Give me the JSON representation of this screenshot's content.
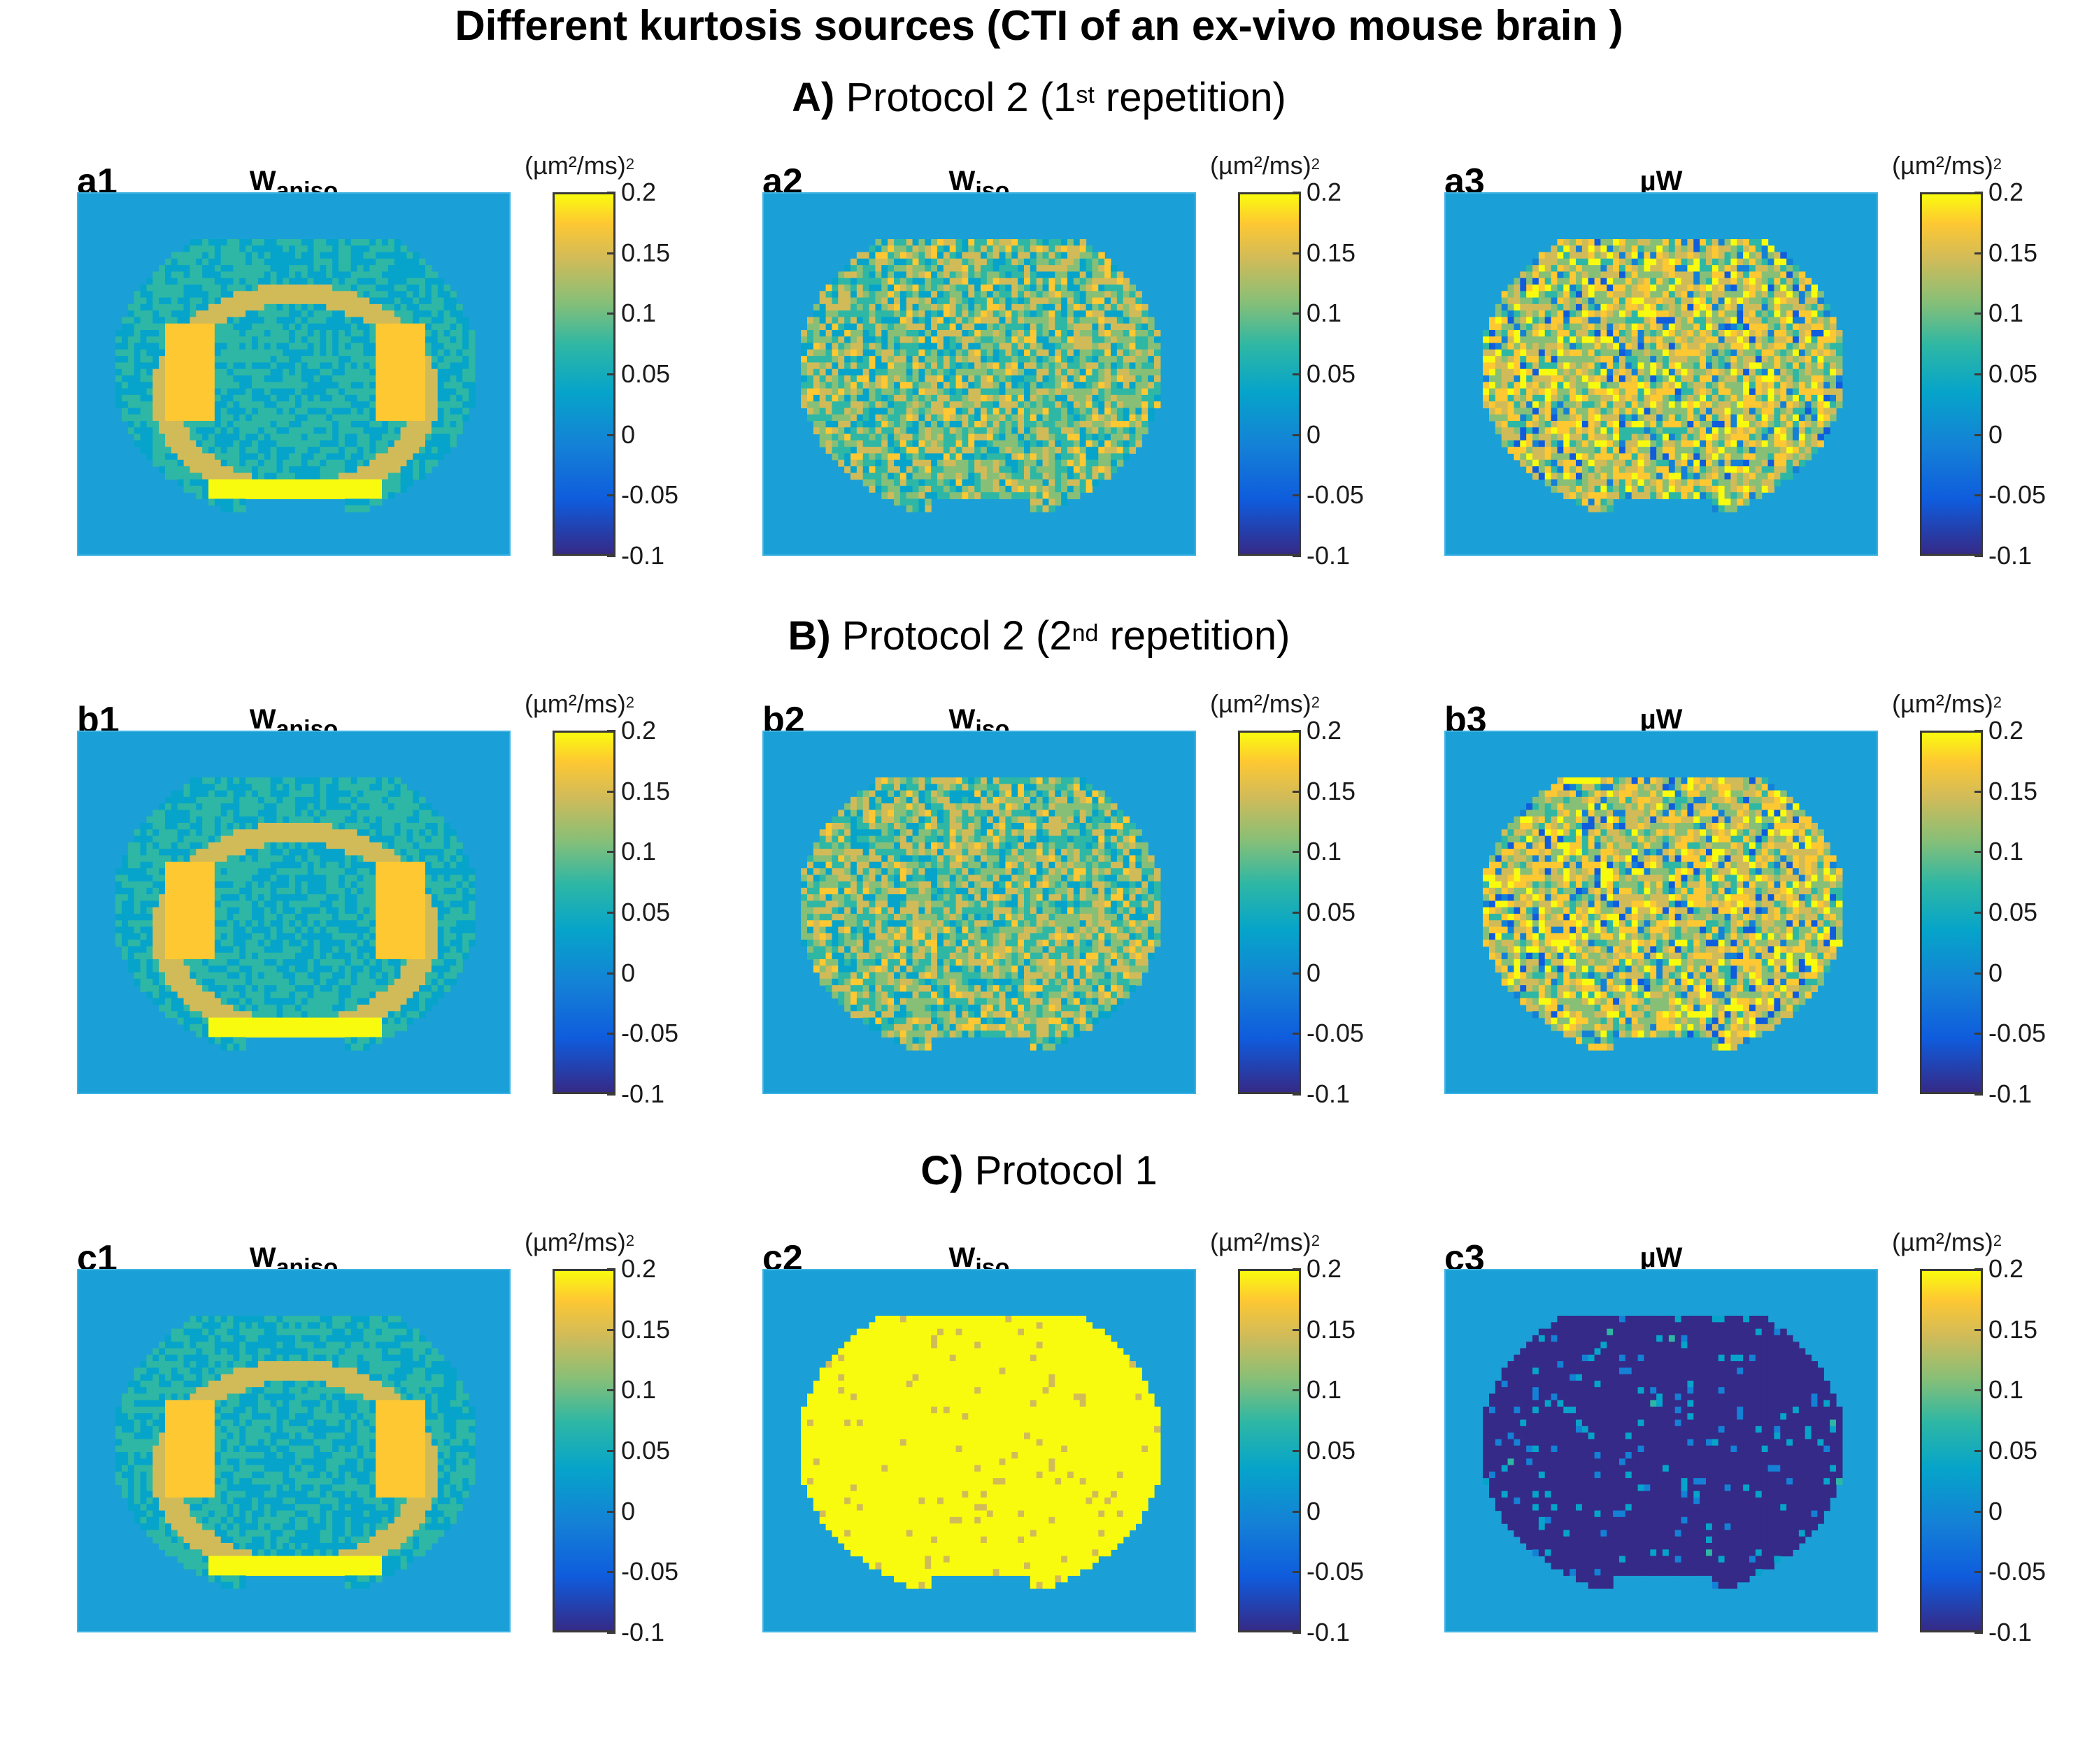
{
  "figure": {
    "title": "Different kurtosis sources (CTI of an ex-vivo mouse brain )",
    "colors": {
      "background_map": "#1aa0d6",
      "yellow": "#f9fb0e",
      "dark": "#352a87"
    },
    "rows": [
      {
        "letter": "A)",
        "text": " Protocol 2 (1",
        "sup": "st",
        "text2": " repetition)"
      },
      {
        "letter": "B)",
        "text": " Protocol 2 (2",
        "sup": "nd",
        "text2": " repetition)"
      },
      {
        "letter": "C)",
        "text": " Protocol 1",
        "sup": "",
        "text2": ""
      }
    ],
    "panels": [
      {
        "label": "a1",
        "title_main": "W",
        "title_sub": "aniso",
        "unit": "(µm²/ms)",
        "unit_sup": "2",
        "pattern": "aniso"
      },
      {
        "label": "a2",
        "title_main": "W",
        "title_sub": "iso",
        "unit": "(µm²/ms)",
        "unit_sup": "2",
        "pattern": "noise-mid"
      },
      {
        "label": "a3",
        "title_main": "µW",
        "title_sub": "",
        "unit": "(µm²/ms)",
        "unit_sup": "2",
        "pattern": "noise-high"
      },
      {
        "label": "b1",
        "title_main": "W",
        "title_sub": "aniso",
        "unit": "(µm²/ms)",
        "unit_sup": "2",
        "pattern": "aniso"
      },
      {
        "label": "b2",
        "title_main": "W",
        "title_sub": "iso",
        "unit": "(µm²/ms)",
        "unit_sup": "2",
        "pattern": "noise-mid"
      },
      {
        "label": "b3",
        "title_main": "µW",
        "title_sub": "",
        "unit": "(µm²/ms)",
        "unit_sup": "2",
        "pattern": "noise-high"
      },
      {
        "label": "c1",
        "title_main": "W",
        "title_sub": "aniso",
        "unit": "(µm²/ms)",
        "unit_sup": "2",
        "pattern": "aniso"
      },
      {
        "label": "c2",
        "title_main": "W",
        "title_sub": "iso",
        "unit": "(µm²/ms)",
        "unit_sup": "2",
        "pattern": "yellow"
      },
      {
        "label": "c3",
        "title_main": "µW",
        "title_sub": "",
        "unit": "(µm²/ms)",
        "unit_sup": "2",
        "pattern": "dark"
      }
    ],
    "colorbar": {
      "min": -0.1,
      "max": 0.2,
      "ticks": [
        "0.2",
        "0.15",
        "0.1",
        "0.05",
        "0",
        "-0.05",
        "-0.1"
      ]
    }
  }
}
